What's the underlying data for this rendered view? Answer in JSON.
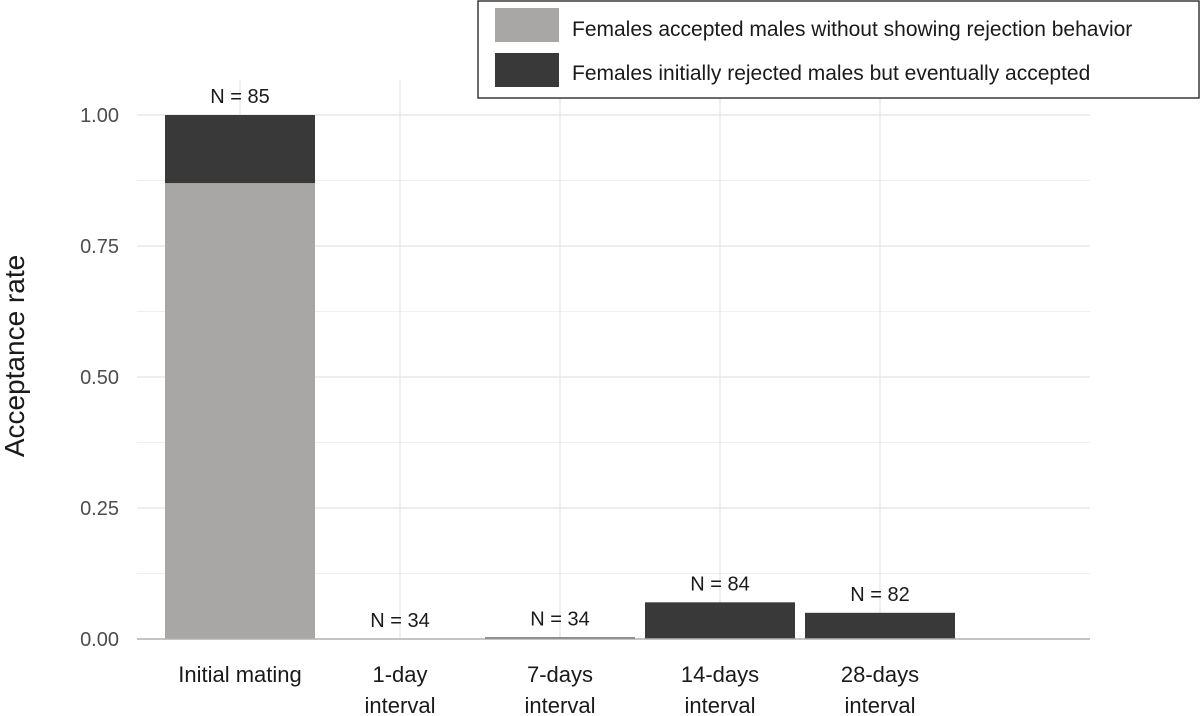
{
  "chart_data": {
    "type": "bar",
    "stacked": true,
    "ylabel": "Acceptance rate",
    "xlabel": "",
    "ylim": [
      0,
      1
    ],
    "yticks": [
      "0.00",
      "0.25",
      "0.50",
      "0.75",
      "1.00"
    ],
    "grid": true,
    "legend_position": "top-right",
    "categories": [
      [
        "Initial mating"
      ],
      [
        "1-day",
        "interval"
      ],
      [
        "7-days",
        "interval"
      ],
      [
        "14-days",
        "interval"
      ],
      [
        "28-days",
        "interval"
      ]
    ],
    "n_labels": [
      "N = 85",
      "N = 34",
      "N = 34",
      "N = 84",
      "N = 82"
    ],
    "series": [
      {
        "name": "Females accepted males without showing rejection behavior",
        "color": "#a9a6a6",
        "values": [
          0.87,
          0,
          0,
          0,
          0
        ]
      },
      {
        "name": "Females initially rejected males but eventually accepted",
        "color": "#3a3939",
        "values": [
          0.13,
          0,
          0.003,
          0.07,
          0.05
        ]
      }
    ]
  }
}
